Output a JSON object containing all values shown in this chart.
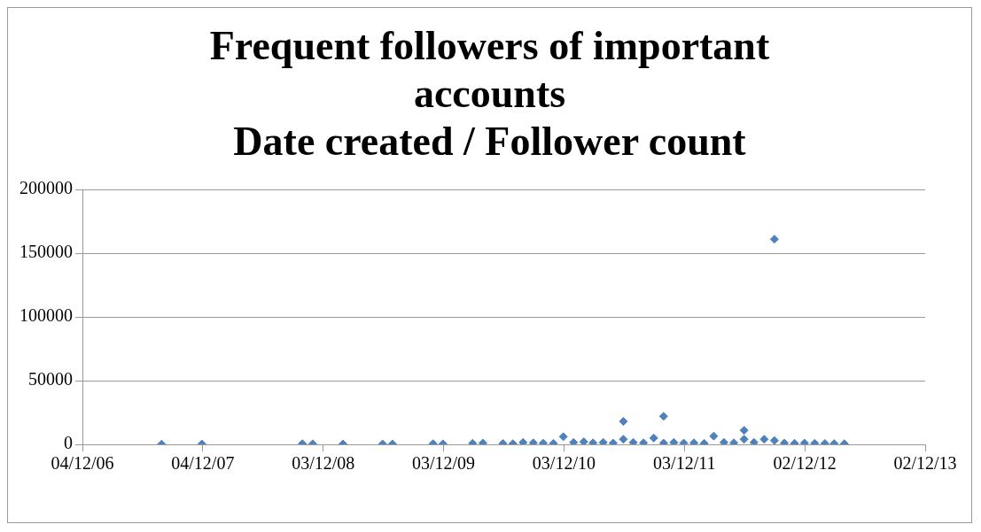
{
  "chart_data": {
    "type": "scatter",
    "title": "Frequent followers of important accounts",
    "subtitle": "Date created / Follower count",
    "x": [
      "2007-08",
      "2007-12",
      "2008-10",
      "2008-11",
      "2009-02",
      "2009-06",
      "2009-07",
      "2009-11",
      "2009-12",
      "2010-03",
      "2010-04",
      "2010-06",
      "2010-07",
      "2010-08",
      "2010-09",
      "2010-10",
      "2010-11",
      "2010-12",
      "2011-01",
      "2011-02",
      "2011-03",
      "2011-04",
      "2011-05",
      "2011-06",
      "2011-06",
      "2011-07",
      "2011-08",
      "2011-09",
      "2011-10",
      "2011-10",
      "2011-11",
      "2011-12",
      "2012-01",
      "2012-02",
      "2012-03",
      "2012-04",
      "2012-05",
      "2012-06",
      "2012-06",
      "2012-07",
      "2012-08",
      "2012-09",
      "2012-09",
      "2012-10",
      "2012-11",
      "2012-12",
      "2013-01",
      "2013-02",
      "2013-03",
      "2013-04"
    ],
    "values": [
      200,
      300,
      500,
      400,
      300,
      300,
      300,
      500,
      400,
      800,
      1000,
      700,
      500,
      1500,
      1200,
      900,
      800,
      6000,
      1500,
      2000,
      1200,
      1500,
      1000,
      18000,
      4000,
      1500,
      1200,
      5000,
      1000,
      22000,
      1500,
      1000,
      1200,
      800,
      6500,
      1500,
      1200,
      4000,
      11000,
      1500,
      4000,
      161000,
      3000,
      1000,
      800,
      1000,
      800,
      700,
      600,
      500
    ],
    "color": "#4f81bd",
    "marker": "diamond",
    "xlim": [
      "2006-12-04",
      "2013-12-02"
    ],
    "xticks": [
      {
        "value": "2006-12-04",
        "label": "04/12/06"
      },
      {
        "value": "2007-12-04",
        "label": "04/12/07"
      },
      {
        "value": "2008-12-03",
        "label": "03/12/08"
      },
      {
        "value": "2009-12-03",
        "label": "03/12/09"
      },
      {
        "value": "2010-12-03",
        "label": "03/12/10"
      },
      {
        "value": "2011-12-03",
        "label": "03/12/11"
      },
      {
        "value": "2012-12-02",
        "label": "02/12/12"
      },
      {
        "value": "2013-12-02",
        "label": "02/12/13"
      }
    ],
    "ylim": [
      0,
      200000
    ],
    "yticks": [
      0,
      50000,
      100000,
      150000,
      200000
    ],
    "grid": "y",
    "legend": false
  }
}
